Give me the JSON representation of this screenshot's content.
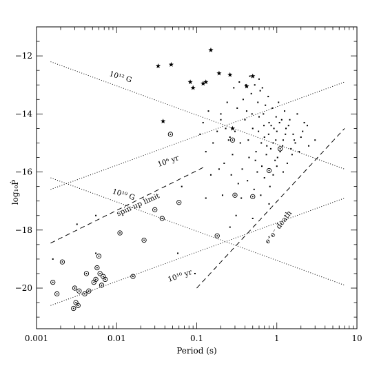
{
  "chart_data": {
    "type": "scatter",
    "xlabel": "Period (s)",
    "ylabel": "log₁₀Ṗ",
    "x_scale": "log",
    "xlim": [
      0.001,
      10
    ],
    "ylim": [
      -21.4,
      -11.0
    ],
    "x_ticks": [
      {
        "value": 0.001,
        "label": "0.001"
      },
      {
        "value": 0.01,
        "label": "0.01"
      },
      {
        "value": 0.1,
        "label": "0.1"
      },
      {
        "value": 1,
        "label": "1"
      },
      {
        "value": 10,
        "label": "10"
      }
    ],
    "y_ticks": [
      {
        "value": -12,
        "label": "−12"
      },
      {
        "value": -14,
        "label": "−14"
      },
      {
        "value": -16,
        "label": "−16"
      },
      {
        "value": -18,
        "label": "−18"
      },
      {
        "value": -20,
        "label": "−20"
      }
    ],
    "reference_lines": [
      {
        "label": "10¹² G",
        "style": "dotted",
        "points": [
          [
            0.0015,
            -12.2
          ],
          [
            7,
            -15.9
          ]
        ],
        "label_at": [
          0.011,
          -12.8
        ],
        "label_angle": 17
      },
      {
        "label": "10¹⁰ G",
        "style": "dotted",
        "points": [
          [
            0.0015,
            -16.2
          ],
          [
            7,
            -19.9
          ]
        ],
        "label_at": [
          0.012,
          -16.85
        ],
        "label_angle": 17
      },
      {
        "label": "10⁶ yr",
        "style": "dotted",
        "points": [
          [
            0.0015,
            -16.6
          ],
          [
            7,
            -12.9
          ]
        ],
        "label_at": [
          0.045,
          -15.7
        ],
        "label_angle": -19
      },
      {
        "label": "10¹⁰ yr",
        "style": "dotted",
        "points": [
          [
            0.0015,
            -20.6
          ],
          [
            7,
            -16.9
          ]
        ],
        "label_at": [
          0.063,
          -19.65
        ],
        "label_angle": -19
      },
      {
        "label": "spin-up limit",
        "style": "dashed",
        "points": [
          [
            0.0015,
            -18.45
          ],
          [
            0.13,
            -15.8
          ]
        ],
        "label_at": [
          0.019,
          -17.2
        ],
        "label_angle": -24
      },
      {
        "label": "e⁺e⁻ death",
        "style": "dashed",
        "points": [
          [
            0.1,
            -20.0
          ],
          [
            7,
            -14.5
          ]
        ],
        "label_at": [
          1.1,
          -17.95
        ],
        "label_angle": -53
      }
    ],
    "series": [
      {
        "marker": "dot",
        "points": [
          [
            0.4,
            -14.2
          ],
          [
            0.5,
            -14.5
          ],
          [
            0.6,
            -14.1
          ],
          [
            0.7,
            -14.8
          ],
          [
            0.8,
            -14.3
          ],
          [
            0.9,
            -15.0
          ],
          [
            1.0,
            -14.6
          ],
          [
            1.2,
            -14.9
          ],
          [
            1.5,
            -15.2
          ],
          [
            0.35,
            -15.0
          ],
          [
            0.45,
            -15.5
          ],
          [
            0.55,
            -15.3
          ],
          [
            0.65,
            -15.8
          ],
          [
            0.75,
            -15.1
          ],
          [
            0.85,
            -14.4
          ],
          [
            0.95,
            -15.6
          ],
          [
            1.1,
            -15.3
          ],
          [
            1.3,
            -14.5
          ],
          [
            1.7,
            -15.0
          ],
          [
            2.0,
            -14.8
          ],
          [
            0.3,
            -14.6
          ],
          [
            0.25,
            -14.9
          ],
          [
            0.28,
            -15.4
          ],
          [
            0.32,
            -13.8
          ],
          [
            0.38,
            -13.5
          ],
          [
            0.42,
            -13.9
          ],
          [
            0.48,
            -13.3
          ],
          [
            0.58,
            -13.6
          ],
          [
            0.62,
            -13.2
          ],
          [
            0.68,
            -14.0
          ],
          [
            0.72,
            -13.7
          ],
          [
            0.78,
            -13.4
          ],
          [
            0.88,
            -13.8
          ],
          [
            0.98,
            -14.1
          ],
          [
            1.05,
            -13.6
          ],
          [
            1.15,
            -14.2
          ],
          [
            1.25,
            -13.9
          ],
          [
            1.4,
            -14.4
          ],
          [
            1.6,
            -14.7
          ],
          [
            1.8,
            -14.0
          ],
          [
            2.2,
            -14.3
          ],
          [
            2.5,
            -15.1
          ],
          [
            0.22,
            -15.7
          ],
          [
            0.27,
            -16.1
          ],
          [
            0.33,
            -16.4
          ],
          [
            0.37,
            -15.9
          ],
          [
            0.43,
            -16.3
          ],
          [
            0.52,
            -16.6
          ],
          [
            0.57,
            -16.0
          ],
          [
            0.63,
            -16.8
          ],
          [
            0.7,
            -16.2
          ],
          [
            0.82,
            -16.5
          ],
          [
            0.9,
            -16.1
          ],
          [
            1.0,
            -15.8
          ],
          [
            1.2,
            -16.0
          ],
          [
            1.35,
            -15.7
          ],
          [
            0.2,
            -14.2
          ],
          [
            0.18,
            -14.6
          ],
          [
            0.16,
            -15.0
          ],
          [
            0.24,
            -13.6
          ],
          [
            0.29,
            -13.1
          ],
          [
            0.34,
            -12.9
          ],
          [
            0.41,
            -13.0
          ],
          [
            0.46,
            -12.7
          ],
          [
            0.53,
            -13.0
          ],
          [
            0.6,
            -12.8
          ],
          [
            0.66,
            -13.1
          ],
          [
            0.31,
            -17.5
          ],
          [
            0.26,
            -17.9
          ],
          [
            0.5,
            -17.6
          ],
          [
            0.8,
            -17.1
          ],
          [
            0.15,
            -16.1
          ],
          [
            0.12,
            -14.3
          ],
          [
            0.13,
            -15.3
          ],
          [
            0.11,
            -14.7
          ],
          [
            0.14,
            -13.9
          ],
          [
            0.19,
            -15.9
          ],
          [
            0.21,
            -16.8
          ],
          [
            0.36,
            -16.9
          ],
          [
            0.44,
            -14.9
          ],
          [
            0.49,
            -14.0
          ],
          [
            0.54,
            -15.6
          ],
          [
            0.59,
            -14.6
          ],
          [
            0.64,
            -15.0
          ],
          [
            0.69,
            -14.4
          ],
          [
            0.74,
            -15.4
          ],
          [
            0.79,
            -14.7
          ],
          [
            0.84,
            -15.2
          ],
          [
            0.92,
            -14.5
          ],
          [
            0.97,
            -14.9
          ],
          [
            1.02,
            -15.5
          ],
          [
            1.08,
            -14.3
          ],
          [
            1.18,
            -15.1
          ],
          [
            1.28,
            -14.7
          ],
          [
            1.45,
            -14.2
          ],
          [
            1.55,
            -15.4
          ],
          [
            1.65,
            -14.9
          ],
          [
            1.9,
            -15.3
          ],
          [
            2.1,
            -14.6
          ],
          [
            2.4,
            -14.4
          ],
          [
            3.0,
            -14.9
          ],
          [
            0.0016,
            -19.0
          ],
          [
            0.0055,
            -18.8
          ],
          [
            0.0032,
            -17.8
          ],
          [
            0.0055,
            -17.5
          ],
          [
            0.058,
            -18.8
          ],
          [
            0.065,
            -16.5
          ],
          [
            0.13,
            -16.9
          ],
          [
            0.095,
            -19.5
          ],
          [
            0.2,
            -14.0
          ],
          [
            0.23,
            -14.5
          ],
          [
            0.26,
            -14.8
          ]
        ]
      },
      {
        "marker": "circled-dot",
        "points": [
          [
            0.0016,
            -19.8
          ],
          [
            0.0018,
            -20.2
          ],
          [
            0.0021,
            -19.1
          ],
          [
            0.0029,
            -20.7
          ],
          [
            0.003,
            -20.0
          ],
          [
            0.0031,
            -20.5
          ],
          [
            0.0033,
            -20.6
          ],
          [
            0.0034,
            -20.1
          ],
          [
            0.004,
            -20.2
          ],
          [
            0.0042,
            -19.5
          ],
          [
            0.0045,
            -20.1
          ],
          [
            0.0052,
            -19.8
          ],
          [
            0.0055,
            -19.7
          ],
          [
            0.0057,
            -19.3
          ],
          [
            0.006,
            -18.9
          ],
          [
            0.0062,
            -19.5
          ],
          [
            0.0065,
            -19.9
          ],
          [
            0.0068,
            -19.6
          ],
          [
            0.0072,
            -19.7
          ],
          [
            0.016,
            -19.6
          ],
          [
            0.011,
            -18.1
          ],
          [
            0.022,
            -18.35
          ],
          [
            0.03,
            -17.3
          ],
          [
            0.037,
            -17.6
          ],
          [
            0.06,
            -17.05
          ],
          [
            0.047,
            -14.7
          ],
          [
            0.18,
            -18.2
          ],
          [
            0.28,
            -14.9
          ],
          [
            0.3,
            -16.8
          ],
          [
            0.5,
            -16.85
          ],
          [
            0.8,
            -15.95
          ],
          [
            1.1,
            -15.2
          ]
        ]
      },
      {
        "marker": "star",
        "points": [
          [
            0.033,
            -12.35
          ],
          [
            0.048,
            -12.3
          ],
          [
            0.038,
            -14.25
          ],
          [
            0.083,
            -12.9
          ],
          [
            0.09,
            -13.1
          ],
          [
            0.12,
            -12.95
          ],
          [
            0.13,
            -12.9
          ],
          [
            0.15,
            -11.8
          ],
          [
            0.19,
            -12.6
          ],
          [
            0.26,
            -12.65
          ],
          [
            0.42,
            -13.05
          ],
          [
            0.5,
            -12.7
          ],
          [
            0.28,
            -14.5
          ]
        ]
      }
    ]
  }
}
